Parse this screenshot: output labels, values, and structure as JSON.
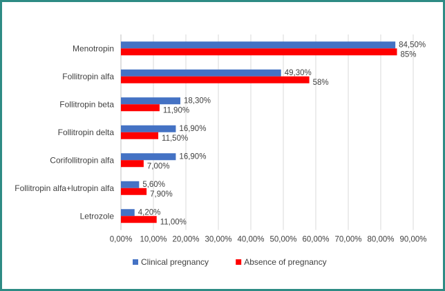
{
  "chart_data": {
    "type": "bar",
    "orientation": "horizontal",
    "title": "",
    "xlabel": "",
    "ylabel": "",
    "xlim": [
      0,
      90
    ],
    "x_ticks": [
      "0,00%",
      "10,00%",
      "20,00%",
      "30,00%",
      "40,00%",
      "50,00%",
      "60,00%",
      "70,00%",
      "80,00%",
      "90,00%"
    ],
    "grid": "vertical",
    "legend_position": "bottom",
    "categories": [
      "Menotropin",
      "Follitropin alfa",
      "Follitropin beta",
      "Follitropin delta",
      "Corifollitropin alfa",
      "Follitropin alfa+lutropin alfa",
      "Letrozole"
    ],
    "series": [
      {
        "name": "Clinical pregnancy",
        "color": "#4472c4",
        "values": [
          84.5,
          49.3,
          18.3,
          16.9,
          16.9,
          5.6,
          4.2
        ],
        "labels": [
          "84,50%",
          "49,30%",
          "18,30%",
          "16,90%",
          "16,90%",
          "5,60%",
          "4,20%"
        ]
      },
      {
        "name": "Absence of pregnancy",
        "color": "#ff0000",
        "values": [
          85,
          58,
          11.9,
          11.5,
          7.0,
          7.9,
          11.0
        ],
        "labels": [
          "85%",
          "58%",
          "11,90%",
          "11,50%",
          "7,00%",
          "7,90%",
          "11,00%"
        ]
      }
    ]
  }
}
